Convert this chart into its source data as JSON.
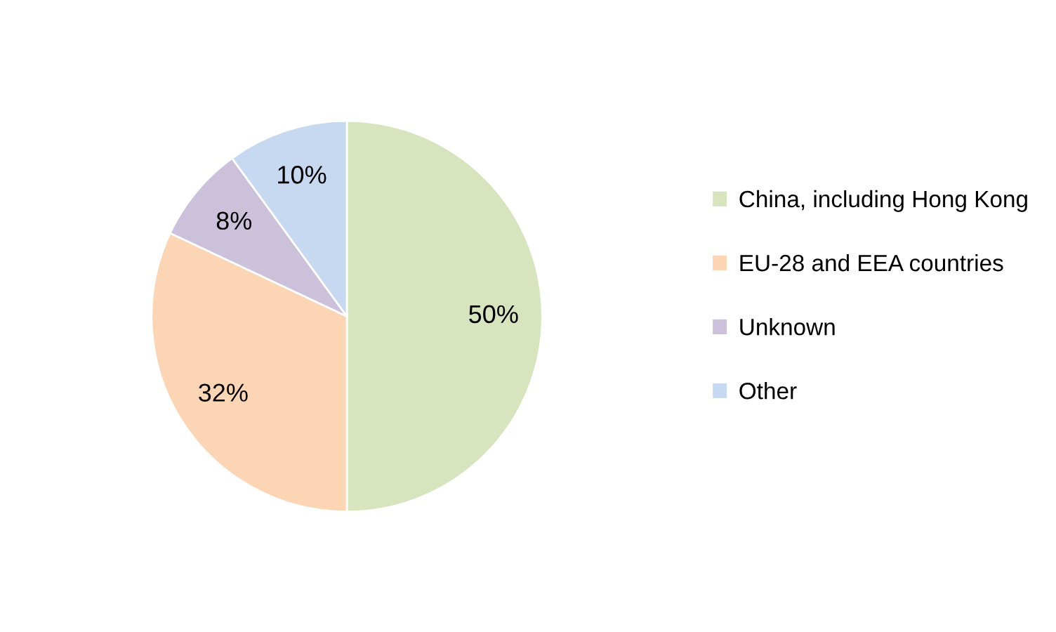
{
  "chart_data": {
    "type": "pie",
    "categories": [
      "China, including Hong Kong",
      "EU-28 and EEA countries",
      "Unknown",
      "Other"
    ],
    "values": [
      50,
      32,
      8,
      10
    ],
    "colors": [
      "#d7e4bd",
      "#fcd5b5",
      "#ccc1da",
      "#c6d9f1"
    ],
    "value_labels": [
      "50%",
      "32%",
      "8%",
      "10%"
    ],
    "legend": "right"
  }
}
